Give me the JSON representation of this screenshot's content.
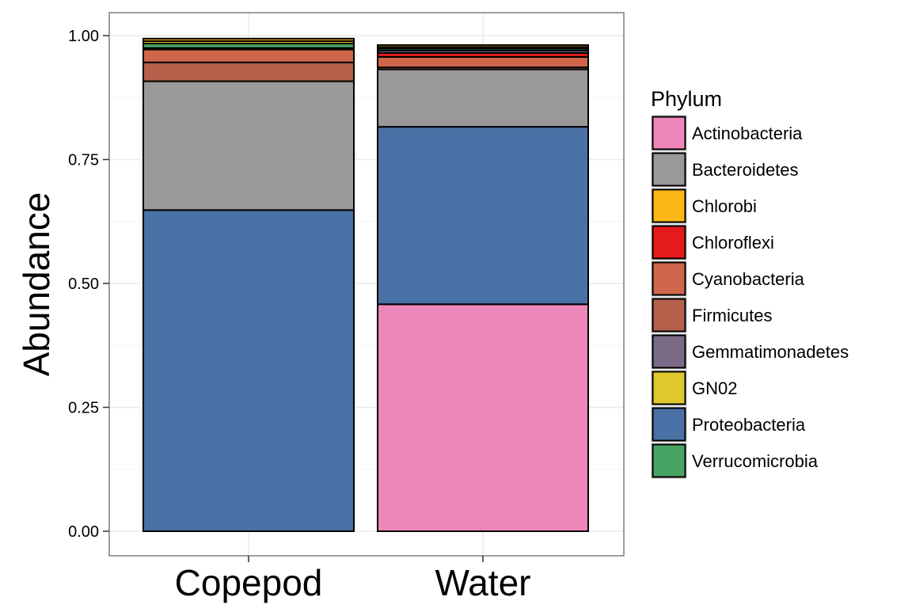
{
  "chart_data": {
    "type": "bar",
    "stacked": true,
    "categories": [
      "Copepod",
      "Water"
    ],
    "ylabel": "Abundance",
    "xlabel": "",
    "ylim": [
      0,
      1
    ],
    "yticks": [
      "0.00",
      "0.25",
      "0.50",
      "0.75",
      "1.00"
    ],
    "ytick_values": [
      0,
      0.25,
      0.5,
      0.75,
      1.0
    ],
    "grid": true,
    "legend": {
      "title": "Phylum",
      "position": "right"
    },
    "series": [
      {
        "name": "Actinobacteria",
        "color": "#EC86BB",
        "values": [
          0.0,
          0.458
        ]
      },
      {
        "name": "Proteobacteria",
        "color": "#4A71A5",
        "values": [
          0.648,
          0.358
        ]
      },
      {
        "name": "Bacteroidetes",
        "color": "#999999",
        "values": [
          0.26,
          0.116
        ]
      },
      {
        "name": "Firmicutes",
        "color": "#B5604B",
        "values": [
          0.038,
          0.004
        ]
      },
      {
        "name": "Cyanobacteria",
        "color": "#CF664A",
        "values": [
          0.026,
          0.021
        ]
      },
      {
        "name": "Chloroflexi",
        "color": "#E41A1C",
        "values": [
          0.0,
          0.008
        ]
      },
      {
        "name": "Gemmatimonadetes",
        "color": "#7B6A86",
        "values": [
          0.003,
          0.005
        ]
      },
      {
        "name": "Verrucomicrobia",
        "color": "#47A463",
        "values": [
          0.009,
          0.004
        ]
      },
      {
        "name": "GN02",
        "color": "#DFC82E",
        "values": [
          0.005,
          0.003
        ]
      },
      {
        "name": "Chlorobi",
        "color": "#FDB714",
        "values": [
          0.005,
          0.004
        ]
      }
    ],
    "legend_order": [
      "Actinobacteria",
      "Bacteroidetes",
      "Chlorobi",
      "Chloroflexi",
      "Cyanobacteria",
      "Firmicutes",
      "Gemmatimonadetes",
      "GN02",
      "Proteobacteria",
      "Verrucomicrobia"
    ]
  }
}
